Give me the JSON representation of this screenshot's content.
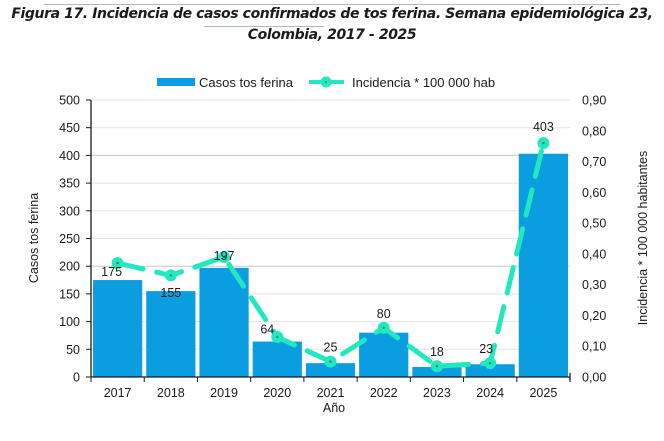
{
  "figure": {
    "title_line1": "Figura 17. Incidencia de casos confirmados de tos ferina. Semana epidemiológica 23,",
    "title_line2": "Colombia, 2017 - 2025"
  },
  "chart_data": {
    "type": "bar",
    "title": "Figura 17. Incidencia de casos confirmados de tos ferina. Semana epidemiológica 23, Colombia, 2017 - 2025",
    "xlabel": "Año",
    "ylabel": "Casos tos ferina",
    "y2label": "Incidencia * 100 000 habitantes",
    "categories": [
      "2017",
      "2018",
      "2019",
      "2020",
      "2021",
      "2022",
      "2023",
      "2024",
      "2025"
    ],
    "ylim": [
      0,
      500
    ],
    "y2lim": [
      0,
      0.9
    ],
    "yticks": [
      "0",
      "50",
      "100",
      "150",
      "200",
      "250",
      "300",
      "350",
      "400",
      "450",
      "500"
    ],
    "y2ticks": [
      "0,00",
      "0,10",
      "0,20",
      "0,30",
      "0,40",
      "0,50",
      "0,60",
      "0,70",
      "0,80",
      "0,90"
    ],
    "grid": true,
    "legend_position": "top",
    "series": [
      {
        "name": "Casos tos ferina",
        "type": "bar",
        "axis": "left",
        "color": "#0a9ee0",
        "values": [
          175,
          155,
          197,
          64,
          25,
          80,
          18,
          23,
          403
        ],
        "labels": [
          "175",
          "155",
          "197",
          "64",
          "25",
          "80",
          "18",
          "23",
          "403"
        ]
      },
      {
        "name": "Incidencia * 100 000 hab",
        "type": "line",
        "style": "dashed",
        "axis": "right",
        "color": "#22e8c0",
        "values": [
          0.37,
          0.33,
          0.39,
          0.13,
          0.05,
          0.16,
          0.035,
          0.045,
          0.76
        ]
      }
    ]
  }
}
